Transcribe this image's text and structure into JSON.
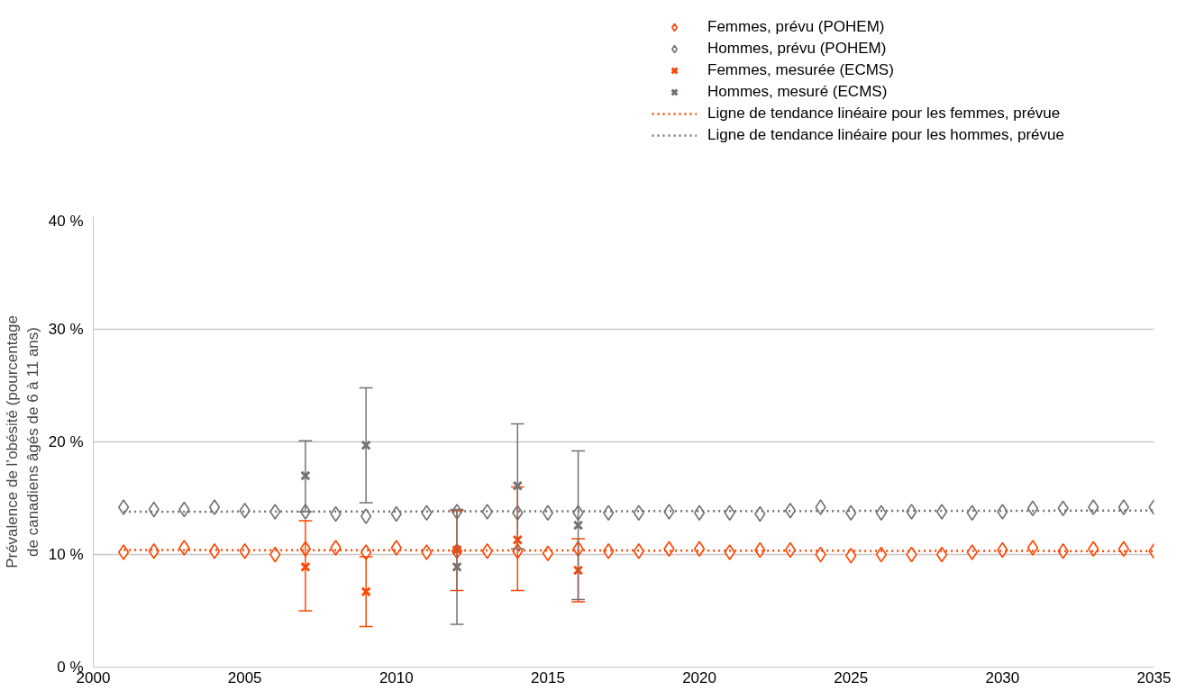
{
  "chart_data": {
    "type": "scatter",
    "ylabel": "Prévalence de l’obésité (pourcentage\nde canadiens âgés de 6 à 11 ans)",
    "xlim": [
      2000,
      2035
    ],
    "xticks": [
      2000,
      2005,
      2010,
      2015,
      2020,
      2025,
      2030,
      2035
    ],
    "ylim": [
      0,
      40
    ],
    "yticks": [
      {
        "value": 0,
        "label": "0 %"
      },
      {
        "value": 10,
        "label": "10 %"
      },
      {
        "value": 20,
        "label": "20 %"
      },
      {
        "value": 30,
        "label": "30 %"
      },
      {
        "value": 40,
        "label": "40 %"
      }
    ],
    "grid": "y",
    "legend": "top",
    "x": [
      2001,
      2002,
      2003,
      2004,
      2005,
      2006,
      2007,
      2008,
      2009,
      2010,
      2011,
      2012,
      2013,
      2014,
      2015,
      2016,
      2017,
      2018,
      2019,
      2020,
      2021,
      2022,
      2023,
      2024,
      2025,
      2026,
      2027,
      2028,
      2029,
      2030,
      2031,
      2032,
      2033,
      2034,
      2035
    ],
    "series": [
      {
        "name": "Femmes, prévu (POHEM)",
        "color": "#ff4500",
        "marker": "diamond",
        "values": [
          10.2,
          10.3,
          10.6,
          10.3,
          10.3,
          10.0,
          10.5,
          10.6,
          10.2,
          10.6,
          10.2,
          10.3,
          10.3,
          10.3,
          10.1,
          10.5,
          10.3,
          10.3,
          10.5,
          10.5,
          10.2,
          10.4,
          10.4,
          10.0,
          9.9,
          10.0,
          10.0,
          10.0,
          10.2,
          10.4,
          10.6,
          10.3,
          10.5,
          10.5,
          10.3
        ]
      },
      {
        "name": "Hommes, prévu (POHEM)",
        "color": "#767171",
        "marker": "diamond",
        "values": [
          14.2,
          14.0,
          14.0,
          14.2,
          13.9,
          13.8,
          13.8,
          13.6,
          13.4,
          13.6,
          13.7,
          13.8,
          13.8,
          13.7,
          13.7,
          13.7,
          13.7,
          13.7,
          13.8,
          13.7,
          13.7,
          13.6,
          13.9,
          14.2,
          13.7,
          13.7,
          13.8,
          13.8,
          13.7,
          13.8,
          14.1,
          14.1,
          14.2,
          14.2,
          14.2
        ]
      },
      {
        "name": "Femmes, mesurée (ECMS)",
        "color": "#ff4500",
        "marker": "cross",
        "x": [
          2007,
          2009,
          2012,
          2014,
          2016
        ],
        "values": [
          8.9,
          6.7,
          10.4,
          11.3,
          8.6
        ],
        "errors": [
          [
            5.0,
            13.0
          ],
          [
            3.6,
            9.8
          ],
          [
            6.8,
            13.9
          ],
          [
            6.8,
            16.0
          ],
          [
            5.8,
            11.4
          ]
        ]
      },
      {
        "name": "Hommes, mesuré (ECMS)",
        "color": "#767171",
        "marker": "cross",
        "x": [
          2007,
          2009,
          2012,
          2014,
          2016
        ],
        "values": [
          17.0,
          19.7,
          8.9,
          16.1,
          12.6
        ],
        "errors": [
          [
            13.8,
            20.1
          ],
          [
            14.6,
            24.8
          ],
          [
            3.8,
            14.0
          ],
          [
            10.5,
            21.6
          ],
          [
            6.0,
            19.2
          ]
        ]
      },
      {
        "name": "Ligne de tendance linéaire pour les femmes, prévue",
        "type": "line",
        "line_style": "dotted",
        "color": "#ff4500",
        "x": [
          2001,
          2035
        ],
        "values": [
          10.4,
          10.3
        ]
      },
      {
        "name": "Ligne de tendance linéaire pour les hommes, prévue",
        "type": "line",
        "line_style": "dotted",
        "color": "#767171",
        "x": [
          2001,
          2035
        ],
        "values": [
          13.8,
          13.9
        ]
      }
    ]
  }
}
